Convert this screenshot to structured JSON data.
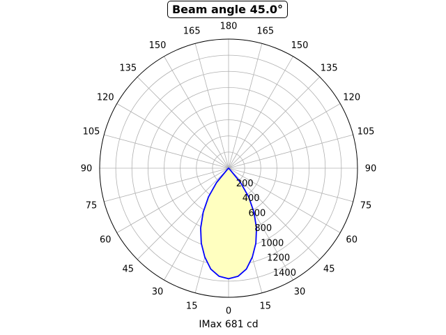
{
  "chart_data": {
    "type": "polar-line",
    "title": "Beam angle 45.0°",
    "xlabel": "IMax 681 cd",
    "angle_tick_labels": [
      "0",
      "15",
      "30",
      "45",
      "60",
      "75",
      "90",
      "105",
      "120",
      "135",
      "150",
      "165",
      "180",
      "165",
      "150",
      "135",
      "120",
      "105",
      "90",
      "75",
      "60",
      "45",
      "30",
      "15"
    ],
    "radial_ticks": [
      200,
      400,
      600,
      800,
      1000,
      1200,
      1400
    ],
    "rlim": [
      0,
      1600
    ],
    "grid": true,
    "zero_direction": "bottom",
    "series": [
      {
        "angles_deg": [
          -180,
          -165,
          -150,
          -135,
          -120,
          -105,
          -90,
          -75,
          -60,
          -45,
          -40,
          -35,
          -30,
          -25,
          -20,
          -15,
          -10,
          -5,
          0,
          5,
          10,
          15,
          20,
          25,
          30,
          35,
          40,
          45,
          60,
          75,
          90,
          105,
          120,
          135,
          150,
          165,
          180
        ],
        "values": [
          0,
          0,
          0,
          0,
          0,
          0,
          0,
          0,
          0,
          20,
          230,
          435,
          630,
          820,
          990,
          1140,
          1270,
          1345,
          1370,
          1345,
          1270,
          1140,
          990,
          820,
          630,
          435,
          230,
          20,
          0,
          0,
          0,
          0,
          0,
          0,
          0,
          0,
          0
        ],
        "line_color": "#0000ff",
        "fill_color": "#ffffc0"
      }
    ]
  }
}
